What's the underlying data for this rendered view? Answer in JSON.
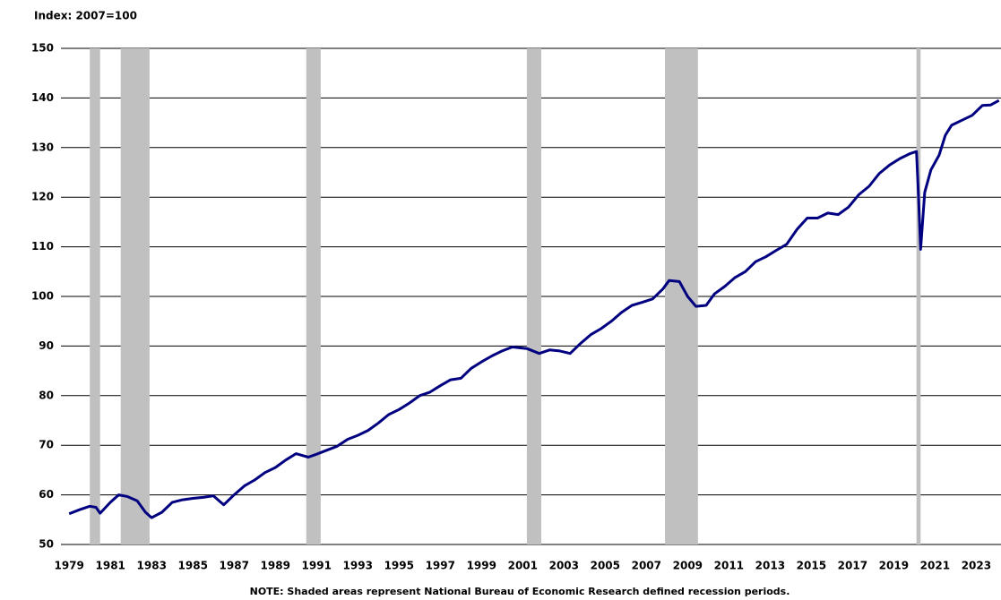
{
  "chart_data": {
    "type": "line",
    "y_label": "Index: 2007=100",
    "note": "NOTE: Shaded areas represent National Bureau of Economic Research defined recession periods.",
    "color": "#000080",
    "recession_color": "#c0c0c0",
    "grid": true,
    "x": [
      1979.0,
      1979.5,
      1980.0,
      1980.3,
      1980.5,
      1981.0,
      1981.4,
      1981.8,
      1982.3,
      1982.7,
      1983.0,
      1983.5,
      1984.0,
      1984.5,
      1985.0,
      1985.5,
      1986.0,
      1986.5,
      1987.0,
      1987.5,
      1988.0,
      1988.5,
      1989.0,
      1989.5,
      1990.0,
      1990.6,
      1991.0,
      1991.5,
      1992.0,
      1992.5,
      1993.0,
      1993.5,
      1994.0,
      1994.5,
      1995.0,
      1995.5,
      1996.0,
      1996.5,
      1997.0,
      1997.5,
      1998.0,
      1998.5,
      1999.0,
      1999.5,
      2000.0,
      2000.5,
      2001.2,
      2001.8,
      2002.3,
      2002.8,
      2003.3,
      2003.8,
      2004.3,
      2004.8,
      2005.3,
      2005.8,
      2006.3,
      2006.8,
      2007.3,
      2007.8,
      2008.1,
      2008.6,
      2009.0,
      2009.4,
      2009.9,
      2010.3,
      2010.8,
      2011.3,
      2011.8,
      2012.3,
      2012.8,
      2013.3,
      2013.8,
      2014.3,
      2014.8,
      2015.3,
      2015.8,
      2016.3,
      2016.8,
      2017.3,
      2017.8,
      2018.3,
      2018.8,
      2019.3,
      2019.8,
      2020.1,
      2020.2,
      2020.3,
      2020.5,
      2020.8,
      2021.2,
      2021.5,
      2021.8,
      2022.3,
      2022.8,
      2023.3,
      2023.7,
      2024.1
    ],
    "values": [
      56.2,
      57,
      57.7,
      57.5,
      56.3,
      58.5,
      60,
      59.7,
      58.8,
      56.5,
      55.4,
      56.5,
      58.5,
      59,
      59.3,
      59.5,
      59.8,
      58,
      60,
      61.8,
      63,
      64.5,
      65.5,
      67,
      68.3,
      67.6,
      68.2,
      69,
      69.8,
      71.2,
      72,
      73,
      74.5,
      76.2,
      77.2,
      78.5,
      80,
      80.7,
      82,
      83.2,
      83.5,
      85.5,
      86.8,
      88,
      89,
      89.8,
      89.5,
      88.5,
      89.2,
      89,
      88.5,
      90.5,
      92.3,
      93.5,
      95,
      96.8,
      98.2,
      98.8,
      99.5,
      101.5,
      103.2,
      103,
      100,
      98,
      98.2,
      100.5,
      102,
      103.8,
      105,
      107,
      108,
      109.3,
      110.5,
      113.5,
      115.8,
      115.8,
      116.8,
      116.5,
      118,
      120.5,
      122.2,
      124.8,
      126.5,
      127.8,
      128.8,
      129.2,
      120,
      109.5,
      121,
      125.5,
      128.5,
      132.5,
      134.5,
      135.5,
      136.5,
      138.5,
      138.6,
      139.5
    ],
    "recessions": [
      {
        "start": 1980.0,
        "end": 1980.5
      },
      {
        "start": 1981.5,
        "end": 1982.9
      },
      {
        "start": 1990.5,
        "end": 1991.2
      },
      {
        "start": 2001.2,
        "end": 2001.9
      },
      {
        "start": 2007.9,
        "end": 2009.5
      },
      {
        "start": 2020.1,
        "end": 2020.3
      }
    ],
    "xlim": [
      1978.6,
      2024.2
    ],
    "xticks": [
      1979,
      1981,
      1983,
      1985,
      1987,
      1989,
      1991,
      1993,
      1995,
      1997,
      1999,
      2001,
      2003,
      2005,
      2007,
      2009,
      2011,
      2013,
      2015,
      2017,
      2019,
      2021,
      2023
    ],
    "ylim": [
      50,
      150
    ],
    "yticks": [
      50,
      60,
      70,
      80,
      90,
      100,
      110,
      120,
      130,
      140,
      150
    ]
  }
}
